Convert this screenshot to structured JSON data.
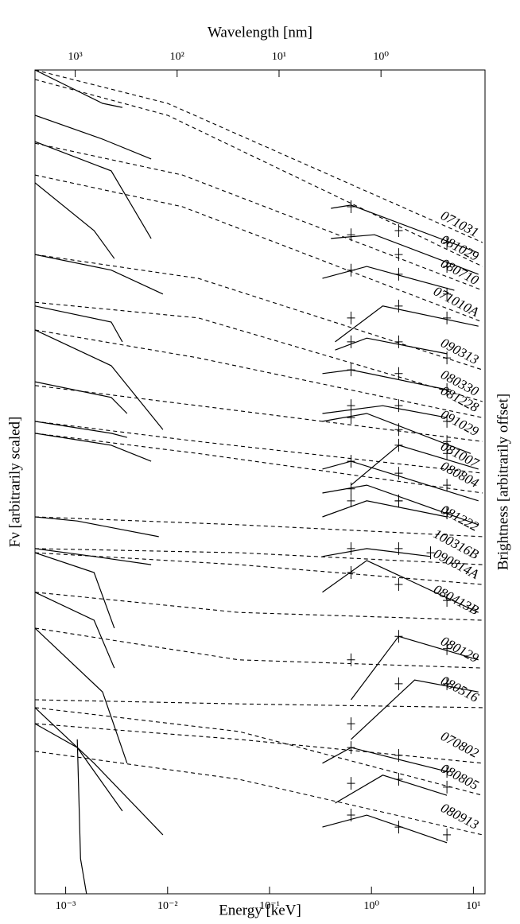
{
  "chart_data": {
    "type": "line",
    "xlog": true,
    "color": "#000000",
    "x2label": "Wavelength [nm]",
    "xlabel": "Energy [keV]",
    "ylabel": "Fν [arbitrarily scaled]",
    "y2label": "Brightness [arbitrarily offset]",
    "xlim": [
      0.0005,
      13
    ],
    "xticks": [
      {
        "value": 0.001,
        "label": "10⁻³"
      },
      {
        "value": 0.01,
        "label": "10⁻²"
      },
      {
        "value": 0.1,
        "label": "10⁻¹"
      },
      {
        "value": 1,
        "label": "10⁰"
      },
      {
        "value": 10,
        "label": "10¹"
      }
    ],
    "x2lim": [
      2480,
      0.0954
    ],
    "x2ticks": [
      {
        "value": 1000,
        "label": "10³"
      },
      {
        "value": 100,
        "label": "10²"
      },
      {
        "value": 10,
        "label": "10¹"
      },
      {
        "value": 1,
        "label": "10⁰"
      }
    ],
    "ylim": [
      -20,
      0
    ],
    "series": [
      {
        "name": "071031",
        "model": {
          "x": [
            0.0005,
            0.01,
            12.3
          ],
          "values": [
            0,
            -0.81,
            -4.19
          ]
        },
        "xray_fit": {
          "x": [
            0.4,
            0.63,
            11.2
          ],
          "values": [
            -3.36,
            -3.28,
            -4.44
          ]
        },
        "optical_fit": {
          "x": [
            0.0005,
            0.0023,
            0.0036
          ],
          "values": [
            0,
            -0.81,
            -0.91
          ]
        },
        "xray_points": {
          "x": [
            0.63,
            1.85,
            5.5
          ],
          "values": [
            -3.32,
            -3.9,
            -4.19
          ]
        }
      },
      {
        "name": "081029",
        "model": {
          "x": [
            0.0005,
            0.01,
            12.3
          ],
          "values": [
            -0.23,
            -1.1,
            -4.77
          ]
        },
        "xray_fit": {
          "x": [
            0.4,
            1.07,
            11.2
          ],
          "values": [
            -4.09,
            -4.0,
            -4.96
          ]
        },
        "optical_fit": {
          "x": [
            0.0005,
            0.0023,
            0.0069
          ],
          "values": [
            -1.1,
            -1.68,
            -2.16
          ]
        },
        "xray_points": {
          "x": [
            0.63,
            1.85,
            5.5
          ],
          "values": [
            -4.0,
            -4.48,
            -4.77
          ]
        }
      },
      {
        "name": "080710",
        "model": {
          "x": [
            0.0005,
            0.014,
            12.3
          ],
          "values": [
            -1.78,
            -2.55,
            -5.35
          ]
        },
        "xray_fit": {
          "x": [
            0.33,
            0.9,
            6.5
          ],
          "values": [
            -5.06,
            -4.77,
            -5.35
          ]
        },
        "optical_fit": {
          "x": [
            0.0005,
            0.0028,
            0.0069
          ],
          "values": [
            -1.74,
            -2.45,
            -4.09
          ]
        },
        "xray_points": {
          "x": [
            0.63,
            1.85,
            5.5
          ],
          "values": [
            -4.86,
            -4.96,
            -5.44
          ]
        }
      },
      {
        "name": "071010A",
        "model": {
          "x": [
            0.0005,
            0.014,
            12.3
          ],
          "values": [
            -2.55,
            -3.32,
            -6.12
          ]
        },
        "xray_fit": {
          "x": [
            0.44,
            1.29,
            11.2
          ],
          "values": [
            -6.6,
            -5.73,
            -6.22
          ]
        },
        "optical_fit": {
          "x": [
            0.0005,
            0.0019,
            0.003
          ],
          "values": [
            -2.74,
            -3.9,
            -4.58
          ]
        },
        "xray_points": {
          "x": [
            0.63,
            1.85,
            5.5
          ],
          "values": [
            -6.02,
            -5.73,
            -6.02
          ]
        }
      },
      {
        "name": "090313",
        "model": {
          "x": [
            0.0005,
            0.02,
            12.3
          ],
          "values": [
            -4.48,
            -5.06,
            -7.28
          ]
        },
        "xray_fit": {
          "x": [
            0.44,
            0.9,
            5.5
          ],
          "values": [
            -6.8,
            -6.51,
            -6.89
          ]
        },
        "optical_fit": {
          "x": [
            0.0005,
            0.0028,
            0.009
          ],
          "values": [
            -4.48,
            -4.86,
            -5.44
          ]
        },
        "xray_points": {
          "x": [
            0.63,
            1.85,
            5.5
          ],
          "values": [
            -6.6,
            -6.6,
            -6.99
          ]
        }
      },
      {
        "name": "080330",
        "model": {
          "x": [
            0.0005,
            0.02,
            12.3
          ],
          "values": [
            -5.64,
            -6.02,
            -8.05
          ]
        },
        "xray_fit": {
          "x": [
            0.33,
            0.63,
            5.5
          ],
          "values": [
            -7.37,
            -7.28,
            -7.76
          ]
        },
        "optical_fit": {
          "x": [
            0.0005,
            0.0028,
            0.0036
          ],
          "values": [
            -5.73,
            -6.12,
            -6.6
          ]
        },
        "xray_points": {
          "x": [
            0.63,
            1.85,
            5.5
          ],
          "values": [
            -7.28,
            -7.37,
            -7.76
          ]
        }
      },
      {
        "name": "081228",
        "model": {
          "x": [
            0.0005,
            0.02,
            12.3
          ],
          "values": [
            -6.31,
            -6.99,
            -8.44
          ]
        },
        "xray_fit": {
          "x": [
            0.33,
            1.29,
            5.5
          ],
          "values": [
            -8.34,
            -8.15,
            -8.44
          ]
        },
        "optical_fit": {
          "x": [
            0.0005,
            0.0028,
            0.009
          ],
          "values": [
            -6.31,
            -7.18,
            -8.73
          ]
        },
        "xray_points": {
          "x": [
            0.63,
            1.85,
            5.5
          ],
          "values": [
            -8.15,
            -8.15,
            -8.53
          ]
        }
      },
      {
        "name": "091029",
        "model": {
          "x": [
            0.0005,
            0.02,
            12.3
          ],
          "values": [
            -7.66,
            -8.15,
            -9.02
          ]
        },
        "xray_fit": {
          "x": [
            0.33,
            0.9,
            9.4
          ],
          "values": [
            -8.53,
            -8.34,
            -9.31
          ]
        },
        "optical_fit": {
          "x": [
            0.0005,
            0.0028,
            0.004
          ],
          "values": [
            -7.57,
            -7.95,
            -8.34
          ]
        },
        "xray_points": {
          "x": [
            0.63,
            1.85,
            5.5
          ],
          "values": [
            -8.44,
            -8.73,
            -9.02
          ]
        }
      },
      {
        "name": "081007",
        "model": {
          "x": [
            0.0005,
            0.02,
            12.3
          ],
          "values": [
            -8.53,
            -9.02,
            -9.79
          ]
        },
        "xray_fit": {
          "x": [
            0.63,
            1.85,
            11.2
          ],
          "values": [
            -10.08,
            -9.11,
            -9.69
          ]
        },
        "optical_fit": {
          "x": [
            0.0005,
            0.0028,
            0.004
          ],
          "values": [
            -8.53,
            -8.82,
            -8.92
          ]
        },
        "xray_points": {
          "x": [
            0.63,
            1.85,
            5.5
          ],
          "values": [
            -9.5,
            -9.11,
            -9.31
          ]
        }
      },
      {
        "name": "080804",
        "model": {
          "x": [
            0.0005,
            0.02,
            12.3
          ],
          "values": [
            -8.82,
            -9.31,
            -10.27
          ]
        },
        "xray_fit": {
          "x": [
            0.33,
            0.63,
            11.2
          ],
          "values": [
            -9.69,
            -9.5,
            -10.46
          ]
        },
        "optical_fit": {
          "x": [
            0.0005,
            0.0028,
            0.0069
          ],
          "values": [
            -8.82,
            -9.11,
            -9.5
          ]
        },
        "xray_points": {
          "x": [
            0.63,
            1.85,
            5.5
          ],
          "values": [
            -9.5,
            -9.79,
            -10.08
          ]
        }
      },
      {
        "name": "081222",
        "model": {
          "x": [
            0.0005,
            0.05,
            12.3
          ],
          "values": [
            -10.85,
            -11.04,
            -11.33
          ]
        },
        "xray_fit": {
          "x": [
            0.33,
            0.9,
            11.2
          ],
          "values": [
            -10.27,
            -10.08,
            -11.04
          ]
        },
        "optical_fit": {
          "x": [
            0.0005,
            0.0013,
            0.0082
          ],
          "values": [
            -10.85,
            -10.95,
            -11.33
          ]
        },
        "xray_points": {
          "x": [
            0.63,
            1.85,
            5.5
          ],
          "values": [
            -10.17,
            -10.46,
            -10.75
          ]
        }
      },
      {
        "name": "100316B",
        "model": {
          "x": [
            0.0005,
            0.05,
            12.3
          ],
          "values": [
            -11.62,
            -11.72,
            -12.01
          ]
        },
        "xray_fit": {
          "x": [
            0.33,
            0.9,
            5.5
          ],
          "values": [
            -10.85,
            -10.46,
            -10.85
          ]
        },
        "optical_fit": {
          "x": [
            0.0005,
            0.0019,
            0.0069
          ],
          "values": [
            -11.62,
            -11.81,
            -12.01
          ]
        },
        "xray_points": {
          "x": [
            0.63,
            1.85,
            5.5
          ],
          "values": [
            -10.46,
            -10.46,
            -10.75
          ]
        }
      },
      {
        "name": "090814A",
        "model": {
          "x": [
            0.0005,
            0.05,
            12.3
          ],
          "values": [
            -11.72,
            -12.01,
            -12.49
          ]
        },
        "xray_fit": {
          "x": [
            0.33,
            0.9,
            3.8
          ],
          "values": [
            -11.81,
            -11.62,
            -11.81
          ]
        },
        "optical_fit": {
          "x": [
            0.0005,
            0.0019,
            0.003
          ],
          "values": [
            -11.72,
            -12.2,
            -13.55
          ]
        },
        "xray_points": {
          "x": [
            0.63,
            1.85,
            3.8
          ],
          "values": [
            -11.62,
            -11.62,
            -11.72
          ]
        }
      },
      {
        "name": "080413B",
        "model": {
          "x": [
            0.0005,
            0.05,
            12.3
          ],
          "values": [
            -12.68,
            -13.17,
            -13.36
          ]
        },
        "xray_fit": {
          "x": [
            0.33,
            0.9,
            11.2
          ],
          "values": [
            -12.68,
            -11.91,
            -13.17
          ]
        },
        "optical_fit": {
          "x": [
            0.0005,
            0.0019,
            0.003
          ],
          "values": [
            -12.68,
            -13.36,
            -14.52
          ]
        },
        "xray_points": {
          "x": [
            0.63,
            1.85,
            5.5
          ],
          "values": [
            -12.2,
            -12.49,
            -12.88
          ]
        }
      },
      {
        "name": "080129",
        "model": {
          "x": [
            0.0005,
            0.05,
            12.3
          ],
          "values": [
            -13.55,
            -14.32,
            -14.52
          ]
        },
        "xray_fit": {
          "x": [
            0.63,
            1.85,
            11.2
          ],
          "values": [
            -15.29,
            -13.75,
            -14.32
          ]
        },
        "optical_fit": {
          "x": [
            0.0005,
            0.0023,
            0.004
          ],
          "values": [
            -13.55,
            -15.1,
            -16.83
          ]
        },
        "xray_points": {
          "x": [
            0.63,
            1.85,
            5.5
          ],
          "values": [
            -14.32,
            -13.75,
            -14.05
          ]
        }
      },
      {
        "name": "080516",
        "model": {
          "x": [
            0.0005,
            0.05,
            12.3
          ],
          "values": [
            -15.29,
            -15.39,
            -15.48
          ]
        },
        "xray_fit": {
          "x": [
            0.63,
            2.65,
            11.2
          ],
          "values": [
            -16.25,
            -14.81,
            -15.1
          ]
        },
        "xray_points": {
          "x": [
            0.63,
            1.85,
            5.5
          ],
          "values": [
            -15.87,
            -14.9,
            -14.9
          ]
        }
      },
      {
        "name": "070802",
        "model": {
          "x": [
            0.0005,
            0.05,
            12.3
          ],
          "values": [
            -15.87,
            -16.25,
            -16.83
          ]
        },
        "xray_fit": {
          "x": [
            0.33,
            0.63,
            5.5
          ],
          "values": [
            -16.83,
            -16.45,
            -17.03
          ]
        },
        "optical_fit": {
          "x": [
            0.0005,
            0.0013,
            0.0036
          ],
          "values": [
            -15.87,
            -16.45,
            -17.99
          ]
        },
        "xray_points": {
          "x": [
            0.63,
            1.85,
            5.5
          ],
          "values": [
            -16.45,
            -16.64,
            -17.03
          ]
        }
      },
      {
        "name": "080805",
        "model": {
          "x": [
            0.0005,
            0.05,
            12.3
          ],
          "values": [
            -15.48,
            -16.06,
            -17.61
          ]
        },
        "xray_fit": {
          "x": [
            0.44,
            1.29,
            5.5
          ],
          "values": [
            -17.8,
            -17.12,
            -17.61
          ]
        },
        "optical_fit": {
          "x": [
            0.0005,
            0.0019,
            0.009
          ],
          "values": [
            -15.48,
            -16.83,
            -18.57
          ]
        },
        "xray_points": {
          "x": [
            0.63,
            1.85,
            5.5
          ],
          "values": [
            -17.32,
            -17.22,
            -17.41
          ]
        }
      },
      {
        "name": "080913",
        "model": {
          "x": [
            0.0005,
            0.05,
            12.3
          ],
          "values": [
            -16.54,
            -17.22,
            -18.57
          ]
        },
        "xray_fit": {
          "x": [
            0.33,
            0.9,
            5.5
          ],
          "values": [
            -18.38,
            -18.09,
            -18.76
          ]
        },
        "optical_fit": {
          "x": [
            0.0013,
            0.0014,
            0.0016
          ],
          "values": [
            -16.25,
            -19.15,
            -20
          ]
        },
        "xray_points": {
          "x": [
            0.63,
            1.85,
            5.5
          ],
          "values": [
            -18.09,
            -18.38,
            -18.57
          ]
        }
      }
    ]
  }
}
